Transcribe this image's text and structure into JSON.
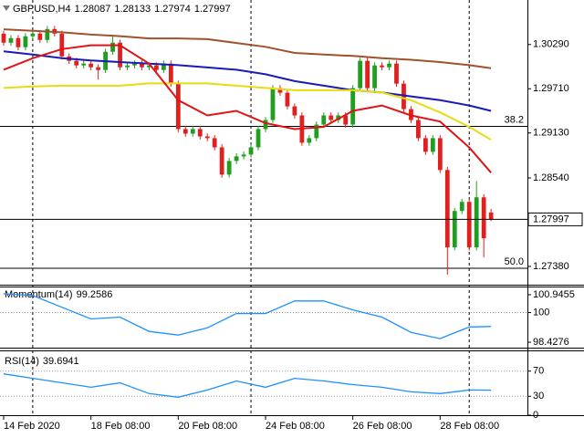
{
  "chart_data": [
    {
      "type": "candlestick",
      "title": "GBPUSD,H4",
      "open": [
        1.30433,
        1.30314,
        1.30374,
        1.30255,
        1.30398,
        1.30433,
        1.3035,
        1.30493,
        1.30433,
        1.30135,
        1.30076,
        1.30016,
        1.3004,
        1.29992,
        1.29956,
        1.30195,
        1.30314,
        1.29992,
        1.30016,
        1.3004,
        1.29992,
        1.30016,
        1.29956,
        1.3004,
        1.29777,
        1.29181,
        1.29121,
        1.29181,
        1.29085,
        1.29062,
        1.28942,
        1.28584,
        1.28763,
        1.28823,
        1.28847,
        1.28942,
        1.29181,
        1.293,
        1.29718,
        1.29658,
        1.29479,
        1.2936,
        1.29002,
        1.29062,
        1.2924,
        1.2936,
        1.293,
        1.2936,
        1.2924,
        1.29718,
        1.30076,
        1.29718,
        1.30016,
        1.29992,
        1.3004,
        1.29777,
        1.29443,
        1.293,
        1.29062,
        1.28883,
        1.29062,
        1.28644,
        1.2763,
        1.28107,
        1.28226,
        1.2763,
        1.28286,
        1.28087
      ],
      "high": [
        1.30473,
        1.30414,
        1.30414,
        1.30438,
        1.30473,
        1.30473,
        1.30533,
        1.30533,
        1.30473,
        1.30175,
        1.30116,
        1.3008,
        1.3008,
        1.30032,
        1.30235,
        1.3041,
        1.30354,
        1.30056,
        1.3008,
        1.3008,
        1.30056,
        1.30056,
        1.3008,
        1.3008,
        1.29817,
        1.29221,
        1.29221,
        1.29221,
        1.29125,
        1.29102,
        1.28982,
        1.28803,
        1.28863,
        1.28887,
        1.28982,
        1.29221,
        1.2934,
        1.29758,
        1.29758,
        1.29698,
        1.29519,
        1.294,
        1.29102,
        1.2928,
        1.294,
        1.294,
        1.294,
        1.294,
        1.29758,
        1.30116,
        1.30116,
        1.30056,
        1.30056,
        1.3008,
        1.3008,
        1.29817,
        1.29483,
        1.2934,
        1.29102,
        1.29102,
        1.29102,
        1.28684,
        1.28147,
        1.28266,
        1.28266,
        1.285,
        1.28326,
        1.28133
      ],
      "low": [
        1.30274,
        1.30274,
        1.30215,
        1.30215,
        1.30358,
        1.3031,
        1.3031,
        1.30393,
        1.30095,
        1.30036,
        1.29976,
        1.29976,
        1.29952,
        1.2983,
        1.29916,
        1.30155,
        1.29952,
        1.29952,
        1.29976,
        1.29952,
        1.29952,
        1.29916,
        1.29916,
        1.29737,
        1.29141,
        1.29081,
        1.29081,
        1.29045,
        1.29022,
        1.28902,
        1.28544,
        1.28544,
        1.28723,
        1.28783,
        1.28807,
        1.28902,
        1.29141,
        1.2926,
        1.29618,
        1.29439,
        1.2932,
        1.28962,
        1.28962,
        1.29022,
        1.292,
        1.2926,
        1.2926,
        1.292,
        1.292,
        1.29678,
        1.29678,
        1.29678,
        1.29952,
        1.29952,
        1.29737,
        1.29403,
        1.2926,
        1.29022,
        1.28843,
        1.28843,
        1.28604,
        1.27272,
        1.2759,
        1.28067,
        1.2759,
        1.2759,
        1.275,
        1.27974
      ],
      "close": [
        1.30314,
        1.30374,
        1.30255,
        1.30398,
        1.30433,
        1.3035,
        1.30493,
        1.30433,
        1.30135,
        1.30076,
        1.30016,
        1.3004,
        1.29992,
        1.29956,
        1.30195,
        1.30314,
        1.29992,
        1.30016,
        1.3004,
        1.29992,
        1.30016,
        1.29956,
        1.3004,
        1.29777,
        1.29181,
        1.29121,
        1.29181,
        1.29085,
        1.29062,
        1.28942,
        1.28584,
        1.28763,
        1.28823,
        1.28847,
        1.28942,
        1.29181,
        1.293,
        1.29718,
        1.29658,
        1.29479,
        1.2936,
        1.29002,
        1.29062,
        1.2924,
        1.2936,
        1.293,
        1.2936,
        1.2924,
        1.29718,
        1.30076,
        1.29718,
        1.30016,
        1.29992,
        1.3004,
        1.29777,
        1.29443,
        1.293,
        1.29062,
        1.28883,
        1.29062,
        1.28644,
        1.2763,
        1.28107,
        1.28226,
        1.2763,
        1.28286,
        1.27749,
        1.27997
      ],
      "up_color": "#1f9e1f",
      "down_color": "#e0201e",
      "xlim": [
        -0.5,
        72
      ],
      "ylim": [
        1.2714,
        1.3085
      ],
      "yticks": [
        {
          "value": 1.3029,
          "label": "1.30290"
        },
        {
          "value": 1.2971,
          "label": "1.29710"
        },
        {
          "value": 1.2913,
          "label": "1.29130"
        },
        {
          "value": 1.2854,
          "label": "1.28540"
        },
        {
          "value": 1.2738,
          "label": "1.27380"
        }
      ],
      "levels": [
        {
          "value": 1.29216,
          "label": "38.2"
        },
        {
          "value": 1.27356,
          "label": "50.0"
        }
      ],
      "separators": [
        4,
        34,
        64
      ],
      "series": [
        {
          "color": "#a0522d",
          "x": [
            0,
            4,
            8,
            12,
            16,
            20,
            24,
            28,
            32,
            36,
            40,
            44,
            48,
            52,
            56,
            60,
            64,
            67
          ],
          "values": [
            1.3049,
            1.3047,
            1.3045,
            1.3042,
            1.304,
            1.3037,
            1.3037,
            1.3036,
            1.3031,
            1.3026,
            1.3018,
            1.3016,
            1.3014,
            1.3011,
            1.3009,
            1.3006,
            1.3002,
            1.2998
          ]
        },
        {
          "color": "#1a1ab8",
          "x": [
            0,
            4,
            8,
            12,
            16,
            20,
            24,
            28,
            32,
            36,
            40,
            44,
            48,
            52,
            56,
            60,
            64,
            67
          ],
          "values": [
            1.302,
            1.3016,
            1.3011,
            1.3008,
            1.3006,
            1.3004,
            1.3002,
            1.2999,
            1.2996,
            1.299,
            1.2981,
            1.2975,
            1.2969,
            1.2966,
            1.2961,
            1.2956,
            1.2949,
            1.2942
          ]
        },
        {
          "color": "#e8dc10",
          "x": [
            0,
            4,
            8,
            12,
            16,
            20,
            24,
            28,
            32,
            36,
            40,
            44,
            48,
            52,
            56,
            60,
            64,
            67
          ],
          "values": [
            1.2972,
            1.2974,
            1.2975,
            1.2975,
            1.2975,
            1.2978,
            1.2978,
            1.2978,
            1.2975,
            1.2972,
            1.2969,
            1.2969,
            1.2969,
            1.2966,
            1.2956,
            1.294,
            1.2921,
            1.2904
          ]
        },
        {
          "color": "#e01414",
          "x": [
            0,
            4,
            8,
            12,
            16,
            20,
            24,
            28,
            32,
            36,
            40,
            44,
            48,
            52,
            56,
            60,
            64,
            67
          ],
          "values": [
            1.2996,
            1.3011,
            1.3023,
            1.3028,
            1.3028,
            1.3004,
            1.2956,
            1.2936,
            1.2942,
            1.2926,
            1.2918,
            1.2921,
            1.2942,
            1.2949,
            1.2936,
            1.2928,
            1.2894,
            1.2861
          ]
        }
      ]
    },
    {
      "type": "line",
      "title": "Momentum(14)",
      "color": "#1e90ff",
      "x": [
        0,
        4,
        8,
        12,
        16,
        20,
        24,
        28,
        32,
        36,
        40,
        44,
        48,
        52,
        56,
        60,
        64,
        67
      ],
      "values": [
        100.993,
        100.898,
        100.28,
        99.663,
        99.758,
        98.998,
        98.808,
        99.188,
        99.948,
        99.948,
        100.613,
        100.613,
        100.138,
        99.758,
        98.95,
        98.617,
        99.235,
        99.2586
      ],
      "xlim": [
        -0.5,
        72
      ],
      "ylim": [
        98.14,
        101.28
      ],
      "yticks": [
        100.9455,
        100,
        98.4276
      ],
      "levels": [
        100
      ]
    },
    {
      "type": "line",
      "title": "RSI(14)",
      "color": "#1e90ff",
      "x": [
        0,
        4,
        8,
        12,
        16,
        20,
        24,
        28,
        32,
        36,
        40,
        44,
        48,
        52,
        56,
        60,
        64,
        67
      ],
      "values": [
        65.7,
        58.6,
        51.4,
        44.3,
        51.4,
        34.3,
        28.6,
        40.0,
        54.3,
        44.3,
        58.6,
        54.3,
        48.6,
        44.3,
        37.1,
        34.3,
        40.0,
        39.6941
      ],
      "xlim": [
        -0.5,
        72
      ],
      "ylim": [
        0,
        100
      ],
      "yticks": [
        70,
        30,
        0
      ],
      "levels": [
        70,
        30
      ],
      "xticks": [
        {
          "value": 0,
          "label": "14 Feb 2020"
        },
        {
          "value": 12,
          "label": "18 Feb 08:00"
        },
        {
          "value": 24,
          "label": "20 Feb 08:00"
        },
        {
          "value": 36,
          "label": "24 Feb 08:00"
        },
        {
          "value": 48,
          "label": "26 Feb 08:00"
        },
        {
          "value": 60,
          "label": "28 Feb 08:00"
        }
      ]
    }
  ]
}
